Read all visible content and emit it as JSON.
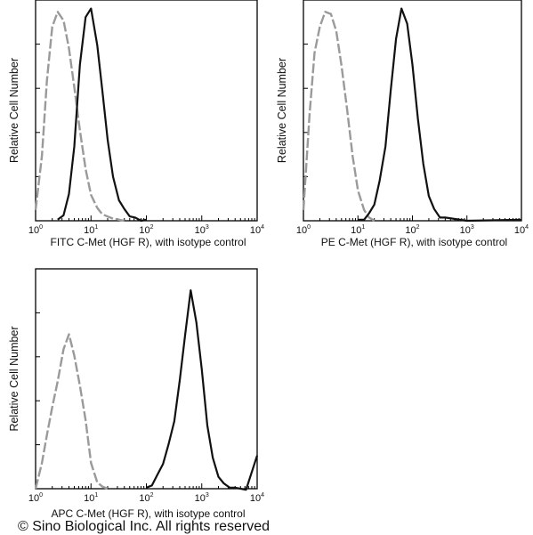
{
  "copyright": "© Sino Biological Inc. All rights reserved",
  "chart_data": [
    {
      "type": "line",
      "panel": "FITC",
      "xlabel": "FITC  C-Met (HGF R),  with isotype control",
      "ylabel": "Relative Cell Number",
      "x_scale": "log",
      "xlim": [
        1,
        10000
      ],
      "x_ticks": [
        "10^0",
        "10^1",
        "10^2",
        "10^3",
        "10^4"
      ],
      "series": [
        {
          "style": "gray-dashed",
          "x": [
            1.0,
            1.3,
            1.6,
            2.0,
            2.5,
            3.2,
            4.0,
            5.0,
            6.3,
            8.0,
            10,
            13,
            16,
            20,
            25,
            32,
            40
          ],
          "y": [
            0.05,
            0.3,
            0.65,
            0.9,
            0.97,
            0.93,
            0.8,
            0.62,
            0.42,
            0.24,
            0.12,
            0.06,
            0.03,
            0.02,
            0.01,
            0.005,
            0.0
          ]
        },
        {
          "style": "black-solid",
          "x": [
            2.5,
            3.2,
            4.0,
            5.0,
            6.3,
            8.0,
            10,
            13,
            16,
            20,
            25,
            32,
            40,
            50,
            63,
            80,
            100
          ],
          "y": [
            0.0,
            0.03,
            0.12,
            0.35,
            0.72,
            0.95,
            0.98,
            0.82,
            0.6,
            0.38,
            0.2,
            0.1,
            0.05,
            0.025,
            0.01,
            0.005,
            0.0
          ]
        }
      ]
    },
    {
      "type": "line",
      "panel": "PE",
      "xlabel": "PE  C-Met (HGF R),  with isotype control",
      "ylabel": "Relative Cell Number",
      "x_scale": "log",
      "xlim": [
        1,
        10000
      ],
      "x_ticks": [
        "10^0",
        "10^1",
        "10^2",
        "10^3",
        "10^4"
      ],
      "series": [
        {
          "style": "gray-dashed",
          "x": [
            1.0,
            1.3,
            1.6,
            2.0,
            2.5,
            3.2,
            4.0,
            5.0,
            6.3,
            8.0,
            10,
            13,
            16,
            20
          ],
          "y": [
            0.05,
            0.5,
            0.78,
            0.9,
            0.97,
            0.96,
            0.88,
            0.72,
            0.52,
            0.3,
            0.14,
            0.05,
            0.015,
            0.0
          ]
        },
        {
          "style": "black-solid",
          "x": [
            10,
            13,
            16,
            20,
            25,
            32,
            40,
            50,
            63,
            80,
            100,
            126,
            158,
            200,
            250,
            320,
            400,
            1000,
            10000
          ],
          "y": [
            0.0,
            0.01,
            0.03,
            0.08,
            0.18,
            0.35,
            0.6,
            0.85,
            0.98,
            0.92,
            0.72,
            0.48,
            0.26,
            0.12,
            0.05,
            0.02,
            0.01,
            0.005,
            0.0
          ]
        }
      ]
    },
    {
      "type": "line",
      "panel": "APC",
      "xlabel": "APC C-Met (HGF R), with isotype control",
      "ylabel": "Relative Cell Number",
      "x_scale": "log",
      "xlim": [
        1,
        10000
      ],
      "x_ticks": [
        "10^0",
        "10^1",
        "10^2",
        "10^3",
        "10^4"
      ],
      "series": [
        {
          "style": "gray-dashed",
          "x": [
            1.0,
            1.3,
            1.6,
            2.0,
            2.5,
            3.2,
            4.0,
            5.0,
            6.3,
            8.0,
            10,
            13,
            16,
            20
          ],
          "y": [
            0.0,
            0.12,
            0.25,
            0.38,
            0.5,
            0.65,
            0.72,
            0.62,
            0.48,
            0.32,
            0.12,
            0.03,
            0.01,
            0.0
          ]
        },
        {
          "style": "black-solid",
          "x": [
            100,
            126,
            158,
            200,
            250,
            320,
            400,
            500,
            630,
            800,
            1000,
            1260,
            1580,
            2000,
            2500,
            3200,
            4000,
            6300,
            10000
          ],
          "y": [
            0.0,
            0.02,
            0.06,
            0.12,
            0.2,
            0.32,
            0.5,
            0.72,
            0.92,
            0.78,
            0.55,
            0.3,
            0.14,
            0.06,
            0.02,
            0.01,
            0.0,
            0.0,
            0.15
          ]
        }
      ]
    }
  ]
}
